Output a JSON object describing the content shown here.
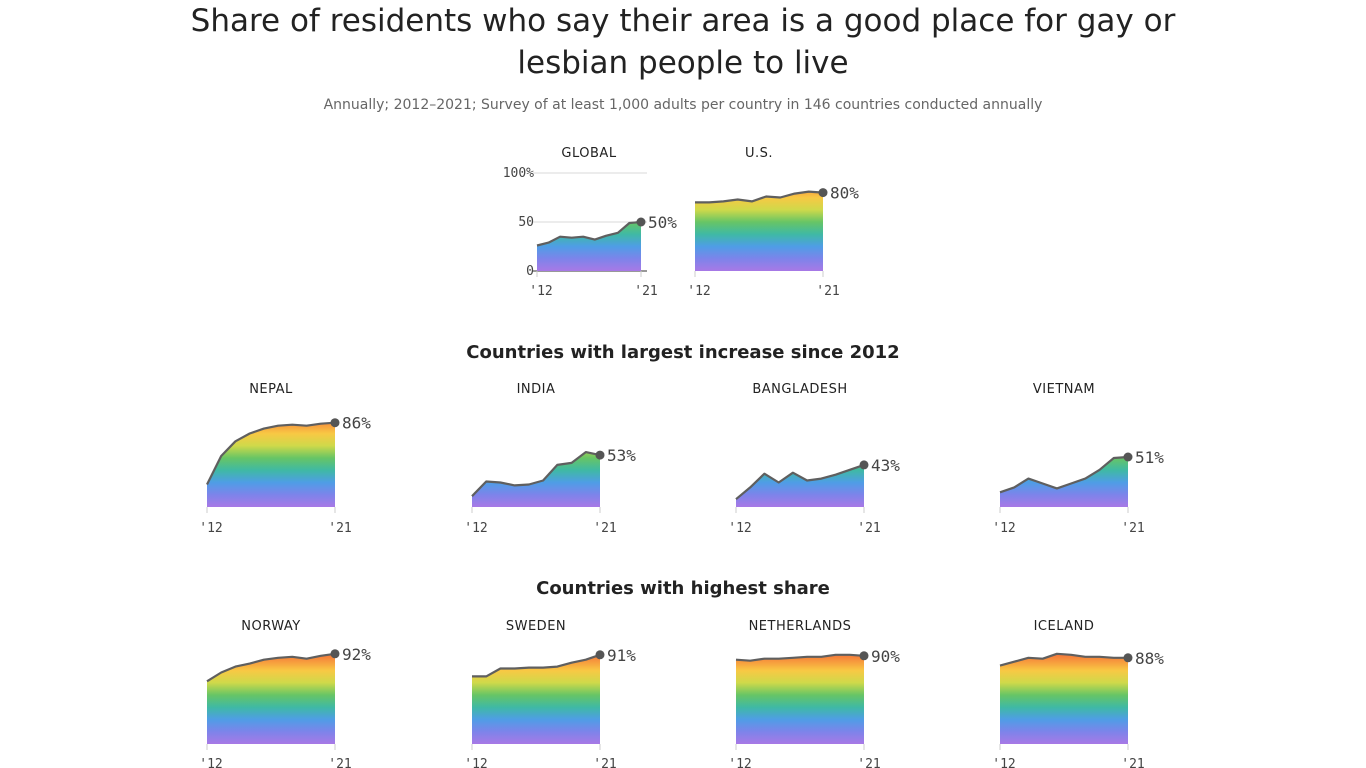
{
  "title_line1": "Share of residents who say their area is a good place for gay or",
  "title_line2": "lesbian people to live",
  "subtitle": "Annually; 2012–2021; Survey of at least 1,000 adults per country in 146 countries conducted annually",
  "sections": {
    "increase": "Countries with largest increase since 2012",
    "highest": "Countries with highest share"
  },
  "colors": {
    "line": "#5f5f5f",
    "gradient": [
      "#e9473d",
      "#f6893b",
      "#f8c844",
      "#cfd94a",
      "#67c565",
      "#3fb9a4",
      "#4f9de6",
      "#7d84ea",
      "#a879e6"
    ]
  },
  "chart_data": [
    {
      "type": "area",
      "panel": "GLOBAL",
      "x": [
        2012,
        2013,
        2014,
        2015,
        2016,
        2017,
        2018,
        2019,
        2020,
        2021
      ],
      "values": [
        26,
        29,
        35,
        34,
        35,
        32,
        36,
        39,
        49,
        50
      ],
      "end_label": "50%",
      "ylim": [
        0,
        100
      ],
      "yticks": [
        "100%",
        "50",
        "0"
      ],
      "xlabels": [
        "'12",
        "'21"
      ]
    },
    {
      "type": "area",
      "panel": "U.S.",
      "x": [
        2012,
        2013,
        2014,
        2015,
        2016,
        2017,
        2018,
        2019,
        2020,
        2021
      ],
      "values": [
        70,
        70,
        71,
        73,
        71,
        76,
        75,
        79,
        81,
        80
      ],
      "end_label": "80%",
      "ylim": [
        0,
        100
      ],
      "xlabels": [
        "'12",
        "'21"
      ]
    },
    {
      "type": "area",
      "panel": "NEPAL",
      "x": [
        2012,
        2013,
        2014,
        2015,
        2016,
        2017,
        2018,
        2019,
        2020,
        2021
      ],
      "values": [
        23,
        52,
        67,
        75,
        80,
        83,
        84,
        83,
        85,
        86
      ],
      "end_label": "86%",
      "ylim": [
        0,
        100
      ],
      "xlabels": [
        "'12",
        "'21"
      ]
    },
    {
      "type": "area",
      "panel": "INDIA",
      "x": [
        2012,
        2013,
        2014,
        2015,
        2016,
        2017,
        2018,
        2019,
        2020,
        2021
      ],
      "values": [
        11,
        26,
        25,
        22,
        23,
        27,
        43,
        45,
        56,
        53
      ],
      "end_label": "53%",
      "ylim": [
        0,
        100
      ],
      "xlabels": [
        "'12",
        "'21"
      ]
    },
    {
      "type": "area",
      "panel": "BANGLADESH",
      "x": [
        2012,
        2013,
        2014,
        2015,
        2016,
        2017,
        2018,
        2019,
        2020,
        2021
      ],
      "values": [
        8,
        20,
        34,
        25,
        35,
        27,
        29,
        33,
        38,
        43
      ],
      "end_label": "43%",
      "ylim": [
        0,
        100
      ],
      "xlabels": [
        "'12",
        "'21"
      ]
    },
    {
      "type": "area",
      "panel": "VIETNAM",
      "x": [
        2012,
        2013,
        2014,
        2015,
        2016,
        2017,
        2018,
        2019,
        2020,
        2021
      ],
      "values": [
        15,
        20,
        29,
        24,
        19,
        24,
        29,
        38,
        50,
        51
      ],
      "end_label": "51%",
      "ylim": [
        0,
        100
      ],
      "xlabels": [
        "'12",
        "'21"
      ]
    },
    {
      "type": "area",
      "panel": "NORWAY",
      "x": [
        2012,
        2013,
        2014,
        2015,
        2016,
        2017,
        2018,
        2019,
        2020,
        2021
      ],
      "values": [
        64,
        73,
        79,
        82,
        86,
        88,
        89,
        87,
        90,
        92
      ],
      "end_label": "92%",
      "ylim": [
        0,
        100
      ],
      "xlabels": [
        "'12",
        "'21"
      ]
    },
    {
      "type": "area",
      "panel": "SWEDEN",
      "x": [
        2012,
        2013,
        2014,
        2015,
        2016,
        2017,
        2018,
        2019,
        2020,
        2021
      ],
      "values": [
        69,
        69,
        77,
        77,
        78,
        78,
        79,
        83,
        86,
        91
      ],
      "end_label": "91%",
      "ylim": [
        0,
        100
      ],
      "xlabels": [
        "'12",
        "'21"
      ]
    },
    {
      "type": "area",
      "panel": "NETHERLANDS",
      "x": [
        2012,
        2013,
        2014,
        2015,
        2016,
        2017,
        2018,
        2019,
        2020,
        2021
      ],
      "values": [
        86,
        85,
        87,
        87,
        88,
        89,
        89,
        91,
        91,
        90
      ],
      "end_label": "90%",
      "ylim": [
        0,
        100
      ],
      "xlabels": [
        "'12",
        "'21"
      ]
    },
    {
      "type": "area",
      "panel": "ICELAND",
      "x": [
        2012,
        2013,
        2014,
        2015,
        2016,
        2017,
        2018,
        2019,
        2020,
        2021
      ],
      "values": [
        80,
        84,
        88,
        87,
        92,
        91,
        89,
        89,
        88,
        88
      ],
      "end_label": "88%",
      "ylim": [
        0,
        100
      ],
      "xlabels": [
        "'12",
        "'21"
      ]
    }
  ]
}
